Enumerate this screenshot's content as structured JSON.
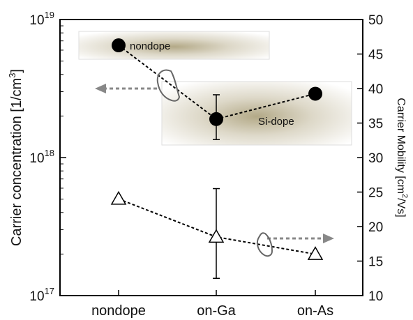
{
  "chart_data": {
    "type": "line",
    "categories": [
      "nondope",
      "on-Ga",
      "on-As"
    ],
    "y_left": {
      "label_main": "Carrier concentration [1/cm",
      "label_sup": "3",
      "label_end": "]",
      "scale": "log",
      "ylim": [
        1e+17,
        1e+19
      ],
      "ticks": [
        {
          "base": "10",
          "exp": "17",
          "value": 1e+17
        },
        {
          "base": "10",
          "exp": "18",
          "value": 1e+18
        },
        {
          "base": "10",
          "exp": "19",
          "value": 1e+19
        }
      ]
    },
    "y_right": {
      "label_main": "Carrier Mobility [cm",
      "label_sup": "2",
      "label_end": "/Vs]",
      "scale": "linear",
      "ylim": [
        10,
        50
      ],
      "ticks": [
        "10",
        "15",
        "20",
        "25",
        "30",
        "35",
        "40",
        "45",
        "50"
      ]
    },
    "series": [
      {
        "axis": "left",
        "marker": "filled-circle",
        "values": [
          6.5e+18,
          1.9e+18,
          2.9e+18
        ],
        "error": [
          null,
          [
            1.35e+18,
            2.85e+18
          ],
          null
        ]
      },
      {
        "axis": "right",
        "marker": "open-triangle",
        "values": [
          24,
          18.5,
          16
        ],
        "error": [
          null,
          [
            12.5,
            25.5
          ],
          null
        ]
      }
    ],
    "annotations": {
      "nondope": "nondope",
      "sidope": "Si-dope"
    },
    "grid": false,
    "legend": "none"
  }
}
